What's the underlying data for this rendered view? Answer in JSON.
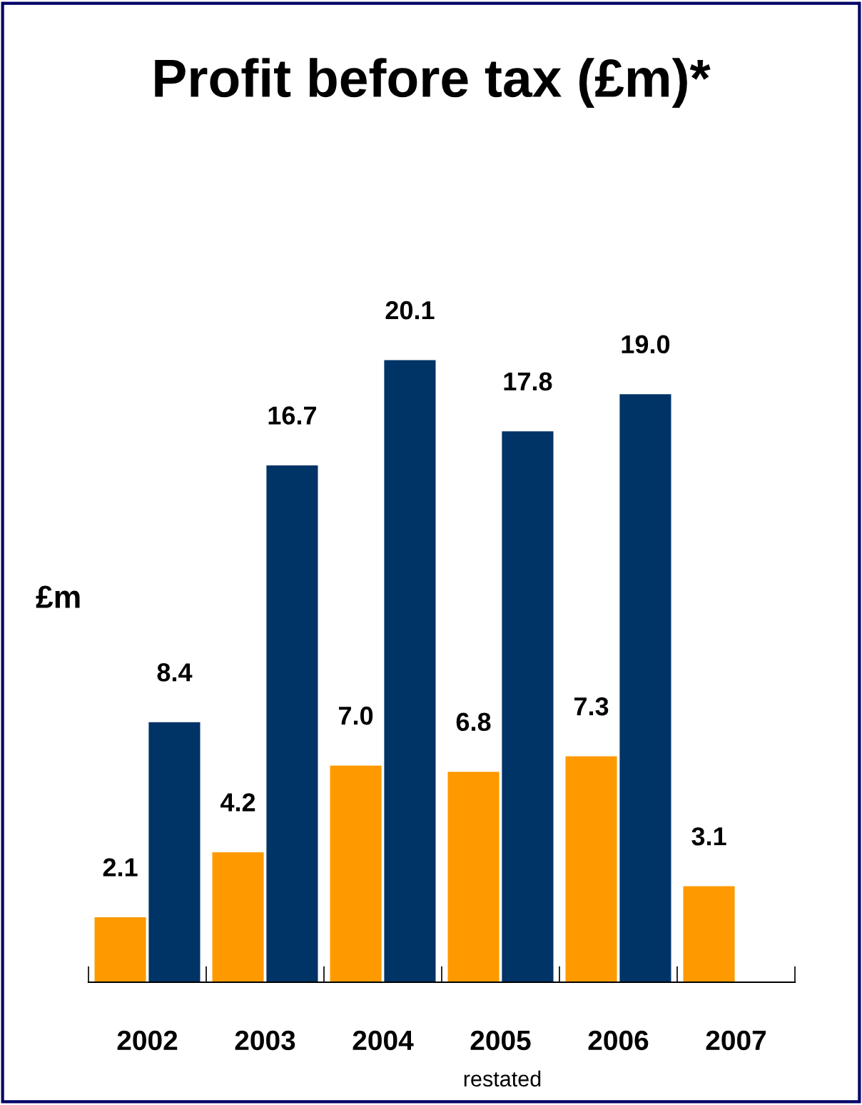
{
  "chart_data": {
    "type": "bar",
    "title": "Profit before tax (£m)*",
    "ylabel": "£m",
    "categories": [
      "2002",
      "2003",
      "2004",
      "2005",
      "2006",
      "2007"
    ],
    "series": [
      {
        "color": "#ff9900",
        "values": [
          2.1,
          4.2,
          7.0,
          6.8,
          7.3,
          3.1
        ],
        "value_labels": [
          "2.1",
          "4.2",
          "7.0",
          "6.8",
          "7.3",
          "3.1"
        ]
      },
      {
        "color": "#003366",
        "values": [
          8.4,
          16.7,
          20.1,
          17.8,
          19.0,
          null
        ],
        "value_labels": [
          "8.4",
          "16.7",
          "20.1",
          "17.8",
          "19.0",
          null
        ]
      }
    ],
    "grid": false,
    "legend": false,
    "tick_labels": "x",
    "annotations": [
      "restated"
    ]
  }
}
